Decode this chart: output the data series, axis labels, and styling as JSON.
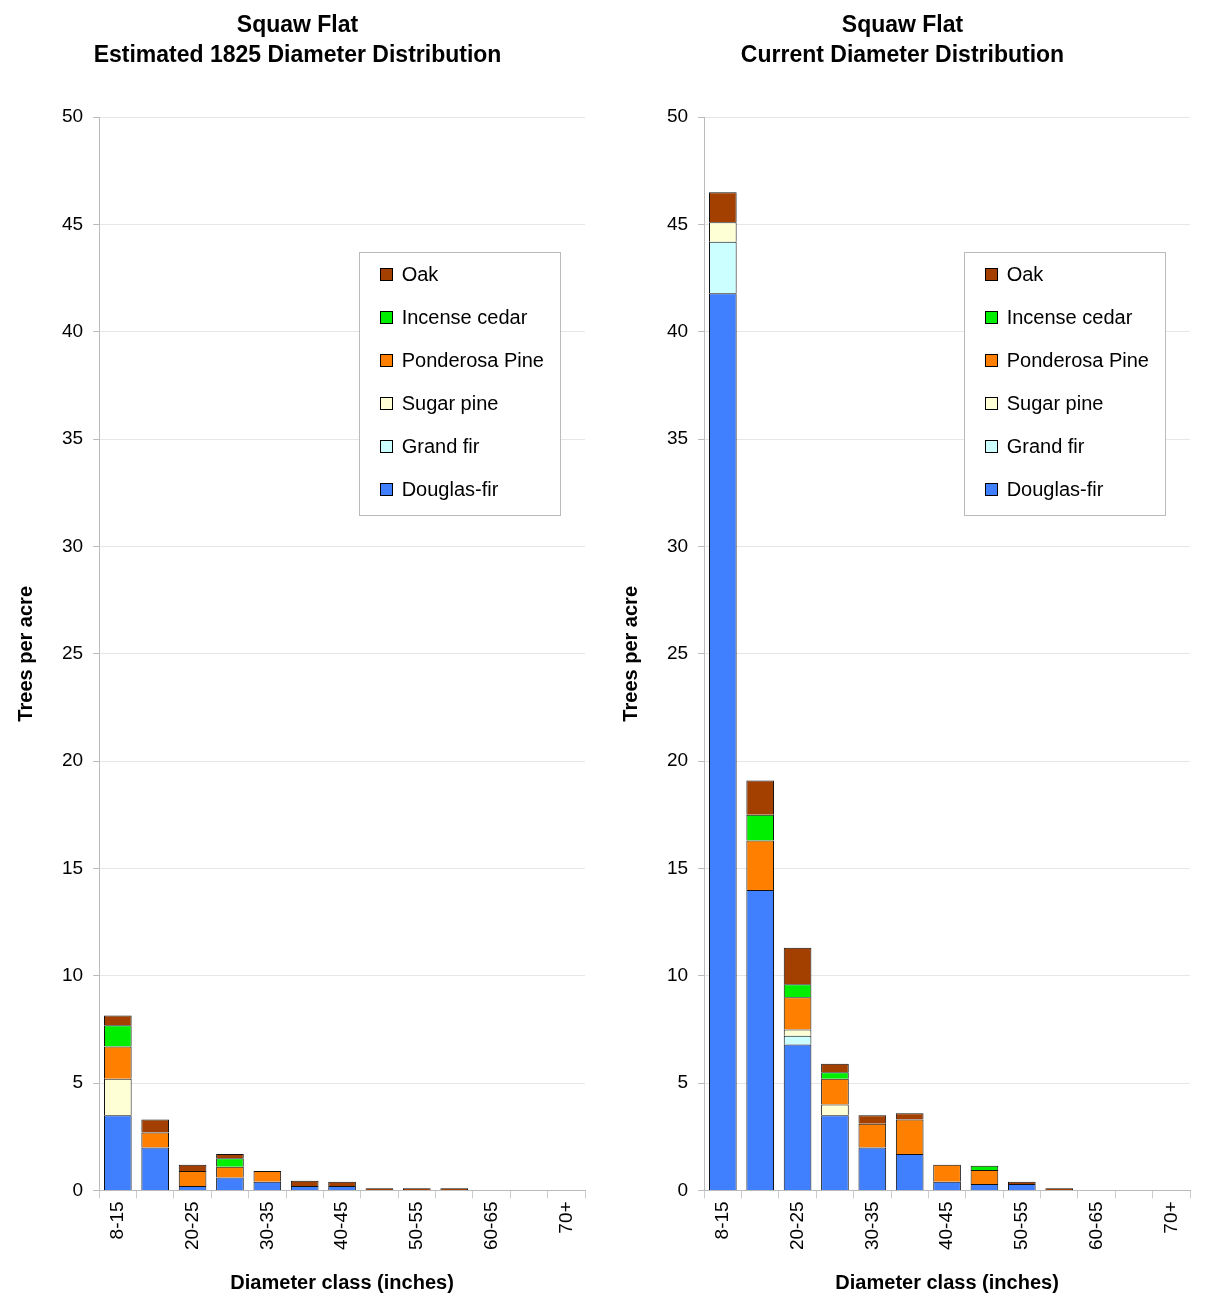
{
  "chart_data": [
    {
      "type": "bar",
      "title": "Squaw Flat",
      "subtitle": "Estimated 1825 Diameter Distribution",
      "xlabel": "Diameter class (inches)",
      "ylabel": "Trees per acre",
      "categories": [
        "8-15",
        null,
        "20-25",
        null,
        "30-35",
        null,
        "40-45",
        null,
        "50-55",
        null,
        "60-65",
        null,
        "70+"
      ],
      "stacked": true,
      "ylim": [
        0,
        50
      ],
      "yticks": [
        0,
        5,
        10,
        15,
        20,
        25,
        30,
        35,
        40,
        45,
        50
      ],
      "grid": "y",
      "legend": "top right",
      "series": [
        {
          "name": "Douglas-fir",
          "color": "#4080ff",
          "values": [
            3.5,
            2.0,
            0.2,
            0.6,
            0.4,
            0.2,
            0.2,
            null,
            null,
            null,
            null,
            null,
            null
          ]
        },
        {
          "name": "Grand fir",
          "color": "#ccffff",
          "values": [
            null,
            null,
            null,
            null,
            null,
            null,
            null,
            null,
            null,
            null,
            null,
            null,
            null
          ]
        },
        {
          "name": "Sugar pine",
          "color": "#ffffd5",
          "values": [
            1.7,
            null,
            null,
            null,
            null,
            null,
            null,
            null,
            null,
            null,
            null,
            null,
            null
          ]
        },
        {
          "name": "Ponderosa Pine",
          "color": "#ff8000",
          "values": [
            1.5,
            0.7,
            0.7,
            0.5,
            0.5,
            null,
            null,
            null,
            null,
            null,
            null,
            null,
            null
          ]
        },
        {
          "name": "Incense cedar",
          "color": "#00ee00",
          "values": [
            1.0,
            null,
            null,
            0.4,
            null,
            null,
            null,
            null,
            null,
            null,
            null,
            null,
            null
          ]
        },
        {
          "name": "Oak",
          "color": "#a34000",
          "values": [
            0.45,
            0.6,
            0.3,
            0.2,
            null,
            0.25,
            0.2,
            0.1,
            0.1,
            0.1,
            null,
            null,
            null
          ]
        }
      ]
    },
    {
      "type": "bar",
      "title": "Squaw Flat",
      "subtitle": "Current Diameter Distribution",
      "xlabel": "Diameter class (inches)",
      "ylabel": "Trees per acre",
      "categories": [
        "8-15",
        null,
        "20-25",
        null,
        "30-35",
        null,
        "40-45",
        null,
        "50-55",
        null,
        "60-65",
        null,
        "70+"
      ],
      "stacked": true,
      "ylim": [
        0,
        50
      ],
      "yticks": [
        0,
        5,
        10,
        15,
        20,
        25,
        30,
        35,
        40,
        45,
        50
      ],
      "grid": "y",
      "legend": "top right",
      "series": [
        {
          "name": "Douglas-fir",
          "color": "#4080ff",
          "values": [
            41.8,
            14.0,
            6.8,
            3.5,
            2.0,
            1.7,
            0.4,
            0.3,
            0.3,
            null,
            null,
            null,
            null
          ]
        },
        {
          "name": "Grand fir",
          "color": "#ccffff",
          "values": [
            2.4,
            null,
            0.4,
            null,
            null,
            null,
            null,
            null,
            null,
            null,
            null,
            null,
            null
          ]
        },
        {
          "name": "Sugar pine",
          "color": "#ffffd5",
          "values": [
            0.9,
            null,
            0.3,
            0.5,
            null,
            null,
            null,
            null,
            null,
            null,
            null,
            null,
            null
          ]
        },
        {
          "name": "Ponderosa Pine",
          "color": "#ff8000",
          "values": [
            null,
            2.3,
            1.5,
            1.2,
            1.1,
            1.6,
            0.8,
            0.65,
            null,
            null,
            null,
            null,
            null
          ]
        },
        {
          "name": "Incense cedar",
          "color": "#00ee00",
          "values": [
            null,
            1.2,
            0.6,
            0.3,
            null,
            null,
            null,
            0.2,
            null,
            null,
            null,
            null,
            null
          ]
        },
        {
          "name": "Oak",
          "color": "#a34000",
          "values": [
            1.4,
            1.6,
            1.7,
            0.4,
            0.4,
            0.3,
            null,
            null,
            0.1,
            0.1,
            null,
            null,
            null
          ]
        }
      ]
    }
  ]
}
